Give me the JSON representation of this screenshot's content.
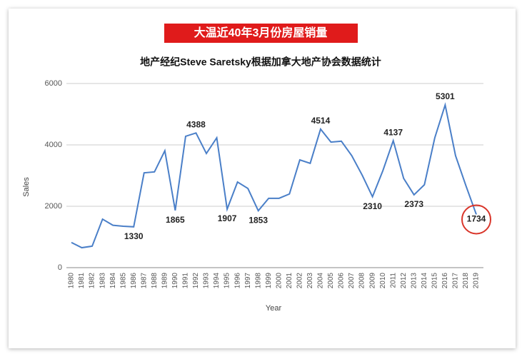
{
  "chart_data": {
    "type": "line",
    "title": "大温近40年3月份房屋销量",
    "subtitle": "地产经纪Steve Saretsky根据加拿大地产协会数据统计",
    "x_label": "Year",
    "y_label": "Sales",
    "categories": [
      "1980",
      "1981",
      "1982",
      "1983",
      "1984",
      "1985",
      "1986",
      "1987",
      "1988",
      "1989",
      "1990",
      "1991",
      "1992",
      "1993",
      "1994",
      "1995",
      "1996",
      "1997",
      "1998",
      "1999",
      "2000",
      "2001",
      "2002",
      "2003",
      "2004",
      "2005",
      "2006",
      "2007",
      "2008",
      "2009",
      "2010",
      "2011",
      "2012",
      "2013",
      "2014",
      "2015",
      "2016",
      "2017",
      "2018",
      "2019"
    ],
    "series": [
      {
        "name": "Sales",
        "color": "#4a7fc8",
        "values": [
          820,
          650,
          700,
          1580,
          1380,
          1350,
          1330,
          3090,
          3120,
          3810,
          1865,
          4280,
          4388,
          3720,
          4230,
          1907,
          2790,
          2580,
          1853,
          2260,
          2260,
          2400,
          3510,
          3400,
          4514,
          4090,
          4120,
          3650,
          3020,
          2310,
          3160,
          4137,
          2910,
          2373,
          2700,
          4230,
          5301,
          3650,
          2670,
          1734
        ],
        "value_labels": [
          null,
          null,
          null,
          null,
          null,
          null,
          "1330",
          null,
          null,
          null,
          "1865",
          null,
          "4388",
          null,
          null,
          "1907",
          null,
          null,
          "1853",
          null,
          null,
          null,
          null,
          null,
          "4514",
          null,
          null,
          null,
          null,
          "2310",
          null,
          "4137",
          null,
          "2373",
          null,
          null,
          "5301",
          null,
          null,
          "1734"
        ]
      }
    ],
    "ylim": [
      0,
      6000
    ],
    "yticks": [
      0,
      2000,
      4000,
      6000
    ],
    "grid": true
  }
}
